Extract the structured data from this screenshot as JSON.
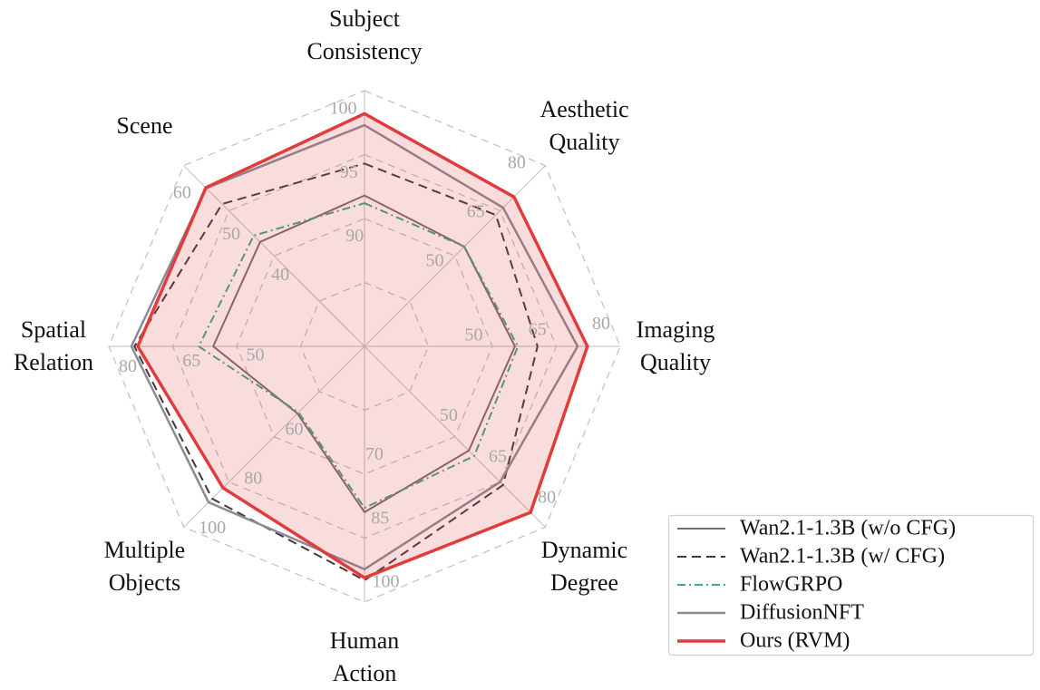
{
  "chart_data": {
    "type": "radar",
    "categories": [
      "Subject Consistency",
      "Aesthetic Quality",
      "Imaging Quality",
      "Dynamic Degree",
      "Human Action",
      "Multiple Objects",
      "Spatial Relation",
      "Scene"
    ],
    "axes": [
      {
        "range": [
          80,
          100
        ],
        "ticks": [
          90,
          95,
          100
        ]
      },
      {
        "range": [
          20,
          80
        ],
        "ticks": [
          50,
          65,
          80
        ]
      },
      {
        "range": [
          20,
          80
        ],
        "ticks": [
          50,
          65,
          80
        ]
      },
      {
        "range": [
          20,
          80
        ],
        "ticks": [
          50,
          65,
          80
        ]
      },
      {
        "range": [
          40,
          100
        ],
        "ticks": [
          70,
          85,
          100
        ]
      },
      {
        "range": [
          20,
          100
        ],
        "ticks": [
          60,
          80,
          100
        ]
      },
      {
        "range": [
          20,
          80
        ],
        "ticks": [
          50,
          65,
          80
        ]
      },
      {
        "range": [
          20,
          60
        ],
        "ticks": [
          40,
          50,
          60
        ]
      }
    ],
    "series": [
      {
        "name": "Wan2.1-1.3B (w/o CFG)",
        "color": "#7d6b70",
        "linestyle": "solid",
        "values": [
          91.8,
          53.1,
          55.3,
          54.6,
          78.9,
          49.7,
          55.5,
          43.1
        ]
      },
      {
        "name": "Wan2.1-1.3B (w/ CFG)",
        "color": "#4a3638",
        "linestyle": "dashed",
        "values": [
          94.3,
          63.6,
          60.6,
          66.0,
          94.9,
          87.4,
          74.0,
          51.5
        ]
      },
      {
        "name": "FlowGRPO",
        "color": "#3aa88c",
        "linestyle": "dashdot",
        "values": [
          91.2,
          53.1,
          56.0,
          56.4,
          77.9,
          49.2,
          58.9,
          44.5
        ]
      },
      {
        "name": "DiffusionNFT",
        "color": "#8a8a98",
        "linestyle": "solid",
        "values": [
          97.3,
          66.0,
          70.0,
          65.0,
          92.3,
          89.0,
          74.7,
          55.0
        ]
      },
      {
        "name": "Ours (RVM)",
        "color": "#e03c3c",
        "linestyle": "solid",
        "fill": true,
        "values": [
          98.2,
          69.6,
          72.3,
          75.1,
          94.3,
          82.6,
          73.2,
          55.1
        ]
      }
    ]
  }
}
